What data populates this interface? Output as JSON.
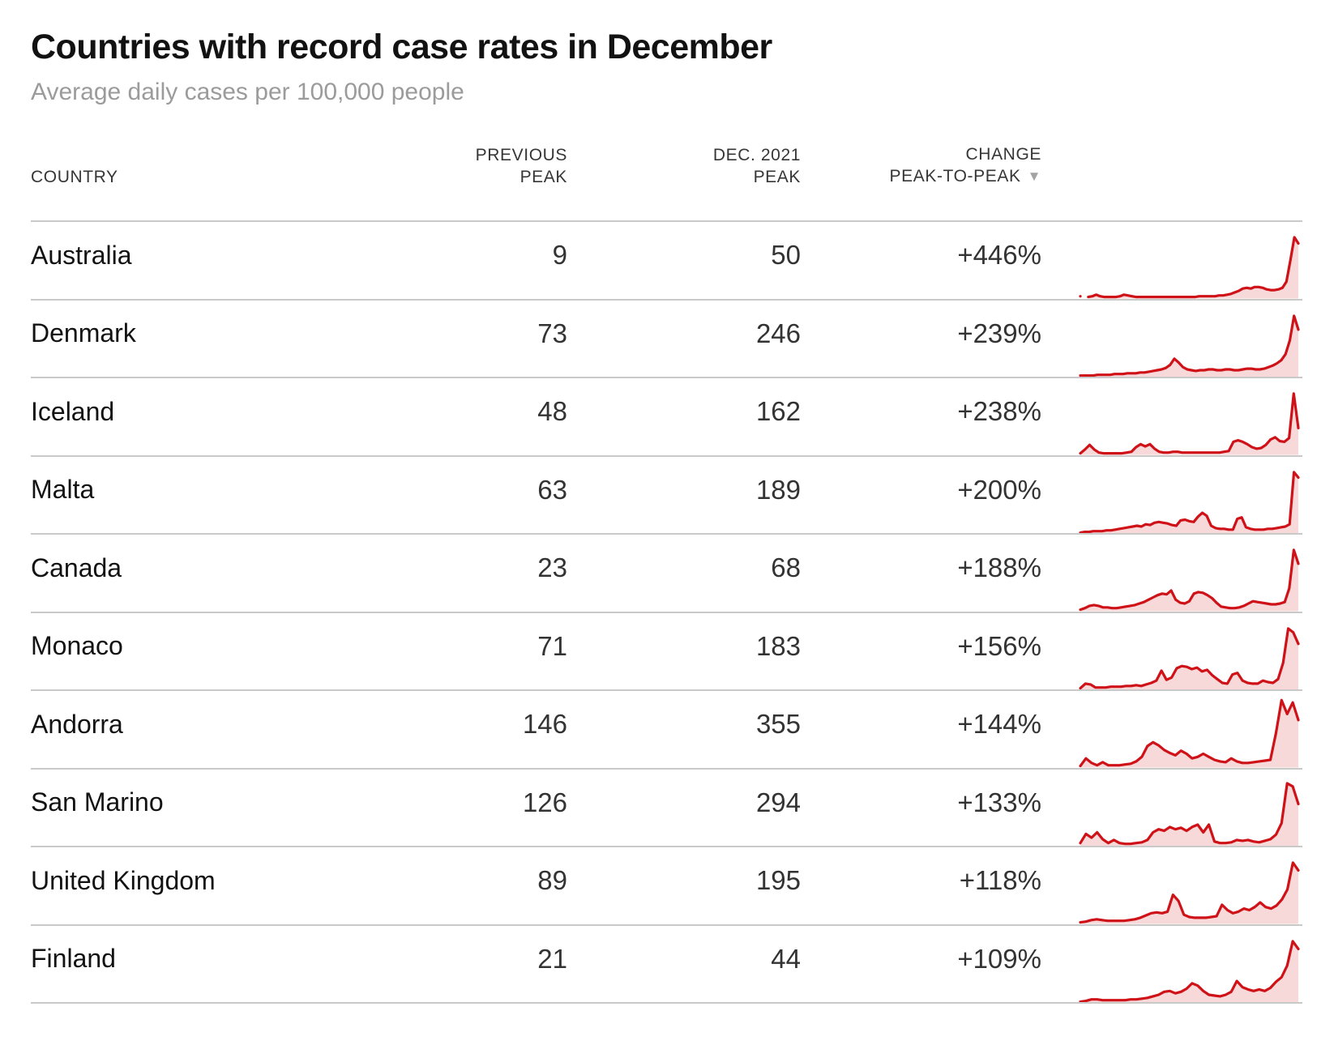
{
  "header": {
    "title": "Countries with record case rates in December",
    "subtitle": "Average daily cases per 100,000 people"
  },
  "table": {
    "col_headers": [
      {
        "line1": "",
        "line2": "COUNTRY"
      },
      {
        "line1": "PREVIOUS",
        "line2": "PEAK"
      },
      {
        "line1": "DEC. 2021",
        "line2": "PEAK"
      },
      {
        "line1": "CHANGE",
        "line2": "PEAK-TO-PEAK"
      }
    ],
    "sort_icon": "▼",
    "sorted_by": "CHANGE PEAK-TO-PEAK",
    "sort_direction": "descending"
  },
  "colors": {
    "accent_red": "#cf1218",
    "spark_fill": "rgba(207,18,24,0.16)",
    "divider": "#c9c9c9",
    "subtitle_gray": "#9b9b9b",
    "header_gray": "#363636",
    "text_black": "#121212"
  },
  "chart_data": {
    "type": "table",
    "title": "Countries with record case rates in December",
    "subtitle": "Average daily cases per 100,000 people",
    "columns": [
      "COUNTRY",
      "PREVIOUS PEAK",
      "DEC. 2021 PEAK",
      "CHANGE PEAK-TO-PEAK"
    ],
    "sparkline_description": "Red area sparkline per row of average daily cases over time ending Dec. 2021; values below are approximate heights in percent of row height (0 = baseline, spike at right = Dec. 2021 record peak). null = gap in data.",
    "rows": [
      {
        "country": "Australia",
        "previous_peak": 9,
        "dec_2021_peak": 50,
        "change": "+446%",
        "spark": [
          3,
          null,
          2,
          3,
          5,
          3,
          2,
          2,
          2,
          2,
          3,
          5,
          4,
          3,
          2,
          2,
          2,
          2,
          2,
          2,
          2,
          2,
          2,
          2,
          2,
          2,
          2,
          2,
          2,
          2,
          3,
          3,
          3,
          3,
          3,
          4,
          4,
          5,
          6,
          8,
          10,
          13,
          14,
          13,
          15,
          15,
          14,
          12,
          11,
          11,
          12,
          14,
          22,
          50,
          80,
          72
        ]
      },
      {
        "country": "Denmark",
        "previous_peak": 73,
        "dec_2021_peak": 246,
        "change": "+239%",
        "spark": [
          2,
          2,
          2,
          2,
          3,
          3,
          3,
          3,
          4,
          4,
          4,
          5,
          5,
          5,
          6,
          6,
          7,
          8,
          9,
          10,
          12,
          16,
          24,
          19,
          13,
          10,
          9,
          8,
          9,
          9,
          10,
          10,
          9,
          9,
          10,
          10,
          9,
          9,
          10,
          11,
          11,
          10,
          10,
          11,
          13,
          15,
          18,
          22,
          30,
          48,
          80,
          62
        ]
      },
      {
        "country": "Iceland",
        "previous_peak": 48,
        "dec_2021_peak": 162,
        "change": "+238%",
        "spark": [
          2,
          7,
          13,
          7,
          3,
          2,
          2,
          2,
          2,
          2,
          3,
          4,
          10,
          14,
          11,
          14,
          8,
          4,
          3,
          3,
          4,
          4,
          3,
          3,
          3,
          3,
          3,
          3,
          3,
          3,
          3,
          4,
          5,
          17,
          19,
          17,
          14,
          10,
          8,
          9,
          13,
          20,
          23,
          18,
          17,
          22,
          80,
          35
        ]
      },
      {
        "country": "Malta",
        "previous_peak": 63,
        "dec_2021_peak": 189,
        "change": "+200%",
        "spark": [
          1,
          2,
          2,
          3,
          3,
          3,
          4,
          4,
          5,
          6,
          7,
          8,
          9,
          10,
          9,
          12,
          11,
          14,
          15,
          14,
          13,
          11,
          10,
          17,
          18,
          16,
          15,
          22,
          27,
          23,
          10,
          7,
          6,
          6,
          5,
          5,
          19,
          21,
          8,
          6,
          5,
          5,
          5,
          6,
          6,
          7,
          8,
          9,
          12,
          80,
          73
        ]
      },
      {
        "country": "Canada",
        "previous_peak": 23,
        "dec_2021_peak": 68,
        "change": "+188%",
        "spark": [
          2,
          4,
          7,
          8,
          7,
          5,
          5,
          4,
          4,
          5,
          6,
          7,
          8,
          10,
          12,
          15,
          18,
          21,
          23,
          22,
          27,
          15,
          11,
          10,
          13,
          23,
          25,
          24,
          21,
          17,
          11,
          6,
          5,
          4,
          4,
          5,
          7,
          10,
          13,
          12,
          11,
          10,
          9,
          9,
          10,
          12,
          30,
          80,
          62
        ]
      },
      {
        "country": "Monaco",
        "previous_peak": 71,
        "dec_2021_peak": 183,
        "change": "+156%",
        "spark": [
          2,
          8,
          7,
          3,
          3,
          3,
          4,
          4,
          4,
          5,
          5,
          6,
          5,
          7,
          9,
          12,
          25,
          13,
          16,
          28,
          31,
          30,
          27,
          29,
          24,
          26,
          19,
          14,
          9,
          8,
          20,
          22,
          12,
          9,
          8,
          8,
          12,
          10,
          9,
          14,
          35,
          80,
          75,
          60
        ]
      },
      {
        "country": "Andorra",
        "previous_peak": 146,
        "dec_2021_peak": 355,
        "change": "+144%",
        "spark": [
          2,
          12,
          6,
          3,
          7,
          3,
          3,
          3,
          4,
          5,
          8,
          14,
          28,
          33,
          29,
          23,
          19,
          16,
          22,
          18,
          12,
          14,
          18,
          14,
          10,
          8,
          7,
          12,
          8,
          6,
          6,
          7,
          8,
          9,
          10,
          45,
          88,
          70,
          85,
          62
        ]
      },
      {
        "country": "San Marino",
        "previous_peak": 126,
        "dec_2021_peak": 294,
        "change": "+133%",
        "spark": [
          4,
          16,
          11,
          18,
          9,
          4,
          8,
          4,
          3,
          3,
          4,
          5,
          8,
          18,
          22,
          20,
          25,
          22,
          24,
          20,
          25,
          28,
          18,
          28,
          6,
          4,
          4,
          5,
          8,
          7,
          8,
          6,
          5,
          7,
          9,
          15,
          30,
          82,
          78,
          55
        ]
      },
      {
        "country": "United Kingdom",
        "previous_peak": 89,
        "dec_2021_peak": 195,
        "change": "+118%",
        "spark": [
          2,
          3,
          5,
          6,
          5,
          4,
          4,
          4,
          4,
          5,
          6,
          8,
          11,
          14,
          15,
          14,
          16,
          38,
          30,
          12,
          9,
          8,
          8,
          8,
          9,
          10,
          25,
          18,
          14,
          16,
          20,
          18,
          22,
          28,
          22,
          20,
          24,
          32,
          45,
          80,
          70
        ]
      },
      {
        "country": "Finland",
        "previous_peak": 21,
        "dec_2021_peak": 44,
        "change": "+109%",
        "spark": [
          1,
          2,
          4,
          4,
          3,
          3,
          3,
          3,
          3,
          4,
          4,
          5,
          6,
          8,
          10,
          14,
          15,
          12,
          14,
          18,
          25,
          22,
          15,
          10,
          9,
          8,
          10,
          14,
          28,
          20,
          17,
          15,
          17,
          15,
          19,
          27,
          33,
          48,
          80,
          70
        ]
      }
    ]
  }
}
